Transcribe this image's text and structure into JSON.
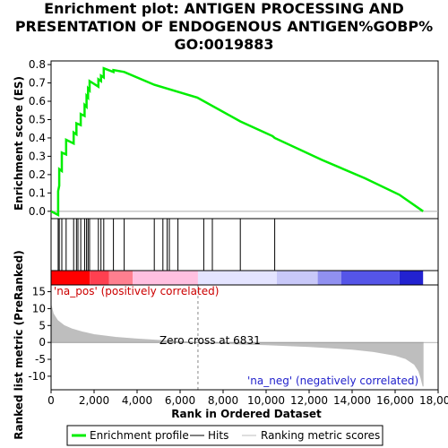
{
  "title_lines": [
    "Enrichment plot: ANTIGEN PROCESSING AND",
    "PRESENTATION OF ENDOGENOUS ANTIGEN%GOBP%",
    "GO:0019883"
  ],
  "colors": {
    "enrichment": "#00ee00",
    "hits": "#000000",
    "metric": "#bebebe",
    "zero_line": "#aaaaaa",
    "pos_text": "#cc0000",
    "neg_text": "#2222cc"
  },
  "chart_data": [
    {
      "type": "line",
      "name": "enrichment-score-panel",
      "ylabel": "Enrichment score (ES)",
      "xlim": [
        0,
        18000
      ],
      "ylim": [
        -0.04,
        0.82
      ],
      "yticks": [
        "0.0",
        "0.1",
        "0.2",
        "0.3",
        "0.4",
        "0.5",
        "0.6",
        "0.7",
        "0.8"
      ],
      "grid": false,
      "series": [
        {
          "name": "Enrichment profile",
          "x": [
            0,
            330,
            330,
            380,
            380,
            500,
            500,
            700,
            700,
            1050,
            1050,
            1180,
            1180,
            1380,
            1380,
            1560,
            1560,
            1650,
            1650,
            1720,
            1720,
            1790,
            1790,
            2200,
            2200,
            2320,
            2320,
            2450,
            2450,
            2900,
            2900,
            3400,
            3400,
            4800,
            6800,
            8800,
            10300,
            10400,
            12600,
            14600,
            16200,
            17300
          ],
          "y": [
            0.0,
            -0.02,
            0.11,
            0.14,
            0.23,
            0.22,
            0.32,
            0.31,
            0.39,
            0.37,
            0.43,
            0.42,
            0.48,
            0.47,
            0.53,
            0.52,
            0.58,
            0.57,
            0.63,
            0.62,
            0.67,
            0.66,
            0.71,
            0.68,
            0.72,
            0.71,
            0.74,
            0.73,
            0.78,
            0.76,
            0.77,
            0.76,
            0.76,
            0.69,
            0.62,
            0.49,
            0.41,
            0.4,
            0.28,
            0.18,
            0.09,
            0.0
          ]
        }
      ]
    },
    {
      "type": "hits",
      "name": "hits-panel",
      "x": [
        330,
        380,
        500,
        700,
        1050,
        1180,
        1250,
        1380,
        1560,
        1650,
        1720,
        1790,
        2200,
        2320,
        2450,
        2900,
        3400,
        4800,
        5200,
        5400,
        5500,
        5900,
        7100,
        7500,
        8800,
        10400
      ]
    },
    {
      "type": "heatmap",
      "name": "rank-color-bar",
      "xlim": [
        0,
        17300
      ],
      "segments": [
        {
          "x0": 0,
          "x1": 1800,
          "color": "#ff0000"
        },
        {
          "x0": 1800,
          "x1": 2700,
          "color": "#ff4050"
        },
        {
          "x0": 2700,
          "x1": 3800,
          "color": "#ff7f8f"
        },
        {
          "x0": 3800,
          "x1": 6831,
          "color": "#ffc0e0"
        },
        {
          "x0": 6831,
          "x1": 10500,
          "color": "#e4e4ff"
        },
        {
          "x0": 10500,
          "x1": 12400,
          "color": "#c8c8f8"
        },
        {
          "x0": 12400,
          "x1": 13500,
          "color": "#9090f0"
        },
        {
          "x0": 13500,
          "x1": 16200,
          "color": "#5555e8"
        },
        {
          "x0": 16200,
          "x1": 17300,
          "color": "#2222d0"
        }
      ]
    },
    {
      "type": "area",
      "name": "ranked-metric-panel",
      "xlabel": "Rank in Ordered Dataset",
      "ylabel": "Ranked list metric (PreRanked)",
      "xlim": [
        0,
        18000
      ],
      "ylim": [
        -14,
        17
      ],
      "xticks": [
        "0",
        "2,000",
        "4,000",
        "6,000",
        "8,000",
        "10,000",
        "12,000",
        "14,000",
        "16,000",
        "18,000"
      ],
      "yticks": [
        "15",
        "10",
        "5",
        "0",
        "-5",
        "-10"
      ],
      "zero_cross": 6831,
      "zero_cross_label": "Zero cross at 6831",
      "pos_label": "'na_pos' (positively correlated)",
      "neg_label": "'na_neg' (negatively correlated)",
      "series": [
        {
          "name": "Ranking metric scores",
          "x": [
            0,
            100,
            300,
            600,
            1000,
            1500,
            2000,
            3000,
            4000,
            5000,
            6000,
            6831,
            8000,
            10000,
            12000,
            14000,
            15000,
            16000,
            16500,
            16900,
            17100,
            17200,
            17300
          ],
          "y": [
            11,
            8.5,
            6.5,
            5.0,
            3.9,
            3.0,
            2.3,
            1.5,
            1.0,
            0.6,
            0.3,
            0.0,
            -0.3,
            -0.7,
            -1.2,
            -2.0,
            -2.7,
            -3.8,
            -4.8,
            -6.5,
            -8.5,
            -10.5,
            -13
          ]
        }
      ]
    }
  ],
  "legend": {
    "placement": "bottom",
    "items": [
      {
        "label": "Enrichment profile",
        "kind": "line",
        "color": "#00ee00"
      },
      {
        "label": "Hits",
        "kind": "line",
        "color": "#000000"
      },
      {
        "label": "Ranking metric scores",
        "kind": "line",
        "color": "#bebebe"
      }
    ]
  }
}
